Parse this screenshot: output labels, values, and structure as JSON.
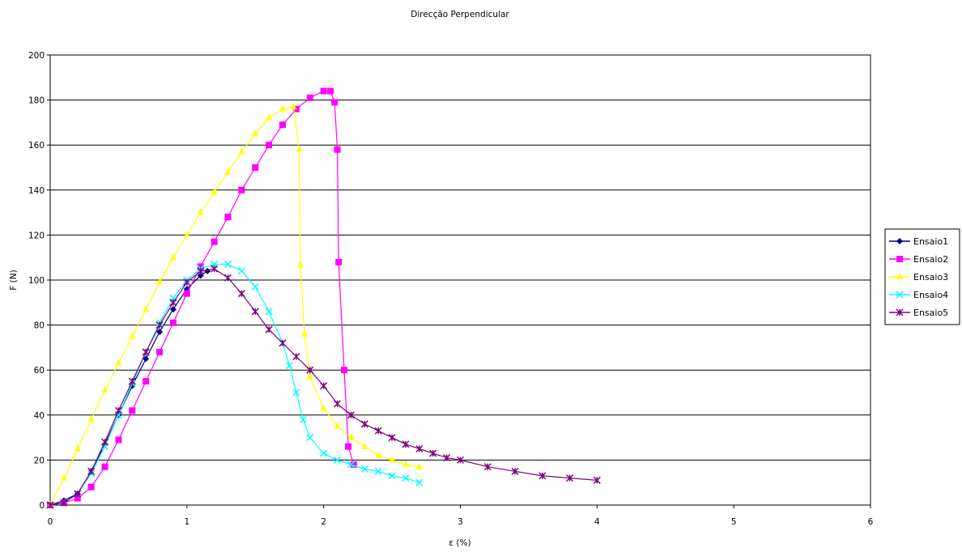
{
  "chart_data": {
    "type": "line",
    "title": "Direcção Perpendicular",
    "xlabel": "ε (%)",
    "ylabel": "F (N)",
    "xlim": [
      0,
      6
    ],
    "ylim": [
      0,
      200
    ],
    "xticks": [
      "0",
      "1",
      "2",
      "3",
      "4",
      "5",
      "6"
    ],
    "yticks": [
      "0",
      "20",
      "40",
      "60",
      "80",
      "100",
      "120",
      "140",
      "160",
      "180",
      "200"
    ],
    "grid": "horizontal",
    "legend_position": "right",
    "series": [
      {
        "name": "Ensaio1",
        "color": "#000080",
        "marker": "diamond",
        "x": [
          0.0,
          0.1,
          0.2,
          0.3,
          0.4,
          0.5,
          0.6,
          0.7,
          0.8,
          0.9,
          1.0,
          1.1,
          1.15
        ],
        "y": [
          0,
          2,
          5,
          15,
          27,
          40,
          53,
          65,
          77,
          87,
          96,
          102,
          104
        ]
      },
      {
        "name": "Ensaio2",
        "color": "#FF00FF",
        "marker": "square",
        "x": [
          0.0,
          0.1,
          0.2,
          0.3,
          0.4,
          0.5,
          0.6,
          0.7,
          0.8,
          0.9,
          1.0,
          1.1,
          1.2,
          1.3,
          1.4,
          1.5,
          1.6,
          1.7,
          1.8,
          1.9,
          2.0,
          2.05,
          2.08,
          2.1,
          2.11,
          2.15,
          2.18,
          2.22
        ],
        "y": [
          0,
          1,
          3,
          8,
          17,
          29,
          42,
          55,
          68,
          81,
          94,
          106,
          117,
          128,
          140,
          150,
          160,
          169,
          176,
          181,
          184,
          184,
          179,
          158,
          108,
          60,
          26,
          18
        ]
      },
      {
        "name": "Ensaio3",
        "color": "#FFFF00",
        "marker": "triangle",
        "x": [
          0.0,
          0.1,
          0.2,
          0.3,
          0.4,
          0.5,
          0.6,
          0.7,
          0.8,
          0.9,
          1.0,
          1.1,
          1.2,
          1.3,
          1.4,
          1.5,
          1.6,
          1.7,
          1.78,
          1.82,
          1.83,
          1.86,
          1.9,
          2.0,
          2.1,
          2.2,
          2.3,
          2.4,
          2.5,
          2.6,
          2.7
        ],
        "y": [
          0,
          12,
          25,
          38,
          51,
          63,
          75,
          87,
          99,
          110,
          120,
          130,
          139,
          148,
          157,
          165,
          172,
          176,
          177,
          158,
          107,
          76,
          57,
          43,
          35,
          30,
          26,
          22,
          20,
          18,
          17
        ]
      },
      {
        "name": "Ensaio4",
        "color": "#00FFFF",
        "marker": "x",
        "x": [
          0.0,
          0.1,
          0.2,
          0.3,
          0.4,
          0.5,
          0.6,
          0.7,
          0.8,
          0.9,
          1.0,
          1.1,
          1.2,
          1.3,
          1.4,
          1.5,
          1.6,
          1.7,
          1.75,
          1.8,
          1.85,
          1.9,
          2.0,
          2.1,
          2.2,
          2.3,
          2.4,
          2.5,
          2.6,
          2.7
        ],
        "y": [
          0,
          1,
          5,
          14,
          26,
          40,
          54,
          68,
          81,
          92,
          100,
          105,
          107,
          107,
          104,
          97,
          86,
          72,
          62,
          50,
          38,
          30,
          23,
          20,
          18,
          16,
          15,
          13,
          12,
          10
        ]
      },
      {
        "name": "Ensaio5",
        "color": "#800080",
        "marker": "star",
        "x": [
          0.0,
          0.1,
          0.2,
          0.3,
          0.4,
          0.5,
          0.6,
          0.7,
          0.8,
          0.9,
          1.0,
          1.1,
          1.2,
          1.3,
          1.4,
          1.5,
          1.6,
          1.7,
          1.8,
          1.9,
          2.0,
          2.1,
          2.2,
          2.3,
          2.4,
          2.5,
          2.6,
          2.7,
          2.8,
          2.9,
          3.0,
          3.2,
          3.4,
          3.6,
          3.8,
          4.0
        ],
        "y": [
          0,
          1,
          5,
          15,
          28,
          42,
          55,
          68,
          80,
          90,
          99,
          104,
          105,
          101,
          94,
          86,
          78,
          72,
          66,
          60,
          53,
          45,
          40,
          36,
          33,
          30,
          27,
          25,
          23,
          21,
          20,
          17,
          15,
          13,
          12,
          11
        ]
      }
    ]
  }
}
